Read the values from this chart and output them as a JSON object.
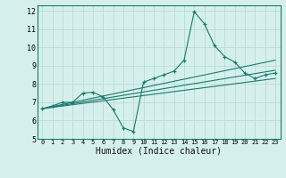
{
  "xlabel": "Humidex (Indice chaleur)",
  "xlim": [
    -0.5,
    23.5
  ],
  "ylim": [
    5,
    12.3
  ],
  "yticks": [
    5,
    6,
    7,
    8,
    9,
    10,
    11,
    12
  ],
  "xticks": [
    0,
    1,
    2,
    3,
    4,
    5,
    6,
    7,
    8,
    9,
    10,
    11,
    12,
    13,
    14,
    15,
    16,
    17,
    18,
    19,
    20,
    21,
    22,
    23
  ],
  "bg_color": "#d5f0ec",
  "grid_color": "#b8dbd6",
  "line_color": "#1a7a6a",
  "series_main": {
    "x": [
      0,
      1,
      2,
      3,
      4,
      5,
      6,
      7,
      8,
      9,
      10,
      11,
      12,
      13,
      14,
      15,
      16,
      17,
      18,
      19,
      20,
      21,
      22,
      23
    ],
    "y": [
      6.65,
      6.8,
      7.0,
      7.0,
      7.5,
      7.55,
      7.3,
      6.6,
      5.6,
      5.4,
      8.1,
      8.3,
      8.5,
      8.7,
      9.3,
      11.95,
      11.3,
      10.1,
      9.5,
      9.2,
      8.6,
      8.3,
      8.5,
      8.6
    ]
  },
  "trend_lines": [
    {
      "x": [
        0,
        23
      ],
      "y": [
        6.65,
        8.3
      ]
    },
    {
      "x": [
        0,
        23
      ],
      "y": [
        6.65,
        8.75
      ]
    },
    {
      "x": [
        0,
        23
      ],
      "y": [
        6.65,
        9.3
      ]
    }
  ]
}
